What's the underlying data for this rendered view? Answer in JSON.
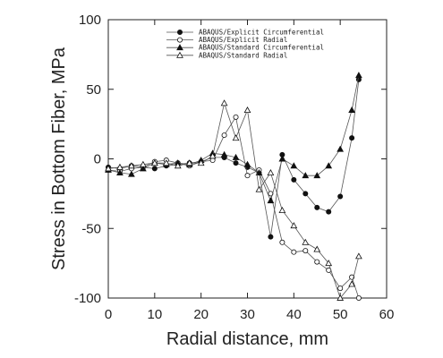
{
  "chart_data": {
    "type": "line",
    "title": "",
    "xlabel": "Radial distance, mm",
    "ylabel": "Stress in Bottom Fiber, MPa",
    "xlim": [
      0,
      60
    ],
    "ylim": [
      -100,
      100
    ],
    "xticks": [
      0,
      10,
      20,
      30,
      40,
      50,
      60
    ],
    "yticks": [
      -100,
      -50,
      0,
      50,
      100
    ],
    "grid": false,
    "legend_position": "top-center",
    "series": [
      {
        "name": "ABAQUS/Explicit Circumferential",
        "marker": "filled-circle",
        "x": [
          0,
          2.5,
          5,
          7.5,
          10,
          12.5,
          15,
          17.5,
          20,
          22.5,
          25,
          27.5,
          30,
          32.5,
          35,
          37.5,
          40,
          42.5,
          45,
          47.5,
          50,
          52.5,
          54
        ],
        "y": [
          -6,
          -7,
          -5,
          -6,
          -7,
          -5,
          -4,
          -3,
          -2,
          1,
          1,
          -3,
          -6,
          -10,
          -56,
          3,
          -15,
          -25,
          -35,
          -38,
          -27,
          15,
          57
        ]
      },
      {
        "name": "ABAQUS/Explicit Radial",
        "marker": "open-circle",
        "x": [
          0,
          2.5,
          5,
          7.5,
          10,
          12.5,
          15,
          17.5,
          20,
          22.5,
          25,
          27.5,
          30,
          32.5,
          35,
          37.5,
          40,
          42.5,
          45,
          47.5,
          50,
          52.5,
          54
        ],
        "y": [
          -8,
          -9,
          -7,
          -6,
          -2,
          -1,
          -3,
          -5,
          -2,
          -1,
          17,
          30,
          -12,
          -8,
          -25,
          -60,
          -67,
          -66,
          -74,
          -80,
          -93,
          -85,
          -100
        ]
      },
      {
        "name": "ABAQUS/Standard Circumferential",
        "marker": "filled-triangle",
        "x": [
          0,
          2.5,
          5,
          7.5,
          10,
          12.5,
          15,
          17.5,
          20,
          22.5,
          25,
          27.5,
          30,
          32.5,
          35,
          37.5,
          40,
          42.5,
          45,
          47.5,
          50,
          52.5,
          54
        ],
        "y": [
          -8,
          -10,
          -11,
          -7,
          -3,
          -4,
          -3,
          -4,
          -1,
          4,
          3,
          1,
          -4,
          -10,
          -30,
          0,
          -5,
          -12,
          -12,
          -5,
          7,
          35,
          60
        ]
      },
      {
        "name": "ABAQUS/Standard Radial",
        "marker": "open-triangle",
        "x": [
          0,
          2.5,
          5,
          7.5,
          10,
          12.5,
          15,
          17.5,
          20,
          22.5,
          25,
          27.5,
          30,
          32.5,
          35,
          37.5,
          40,
          42.5,
          45,
          47.5,
          50,
          52.5,
          54
        ],
        "y": [
          -7,
          -6,
          -5,
          -4,
          -3,
          -3,
          -5,
          -3,
          -3,
          2,
          40,
          15,
          35,
          -22,
          -10,
          -37,
          -48,
          -60,
          -65,
          -75,
          -100,
          -90,
          -70
        ]
      }
    ]
  }
}
